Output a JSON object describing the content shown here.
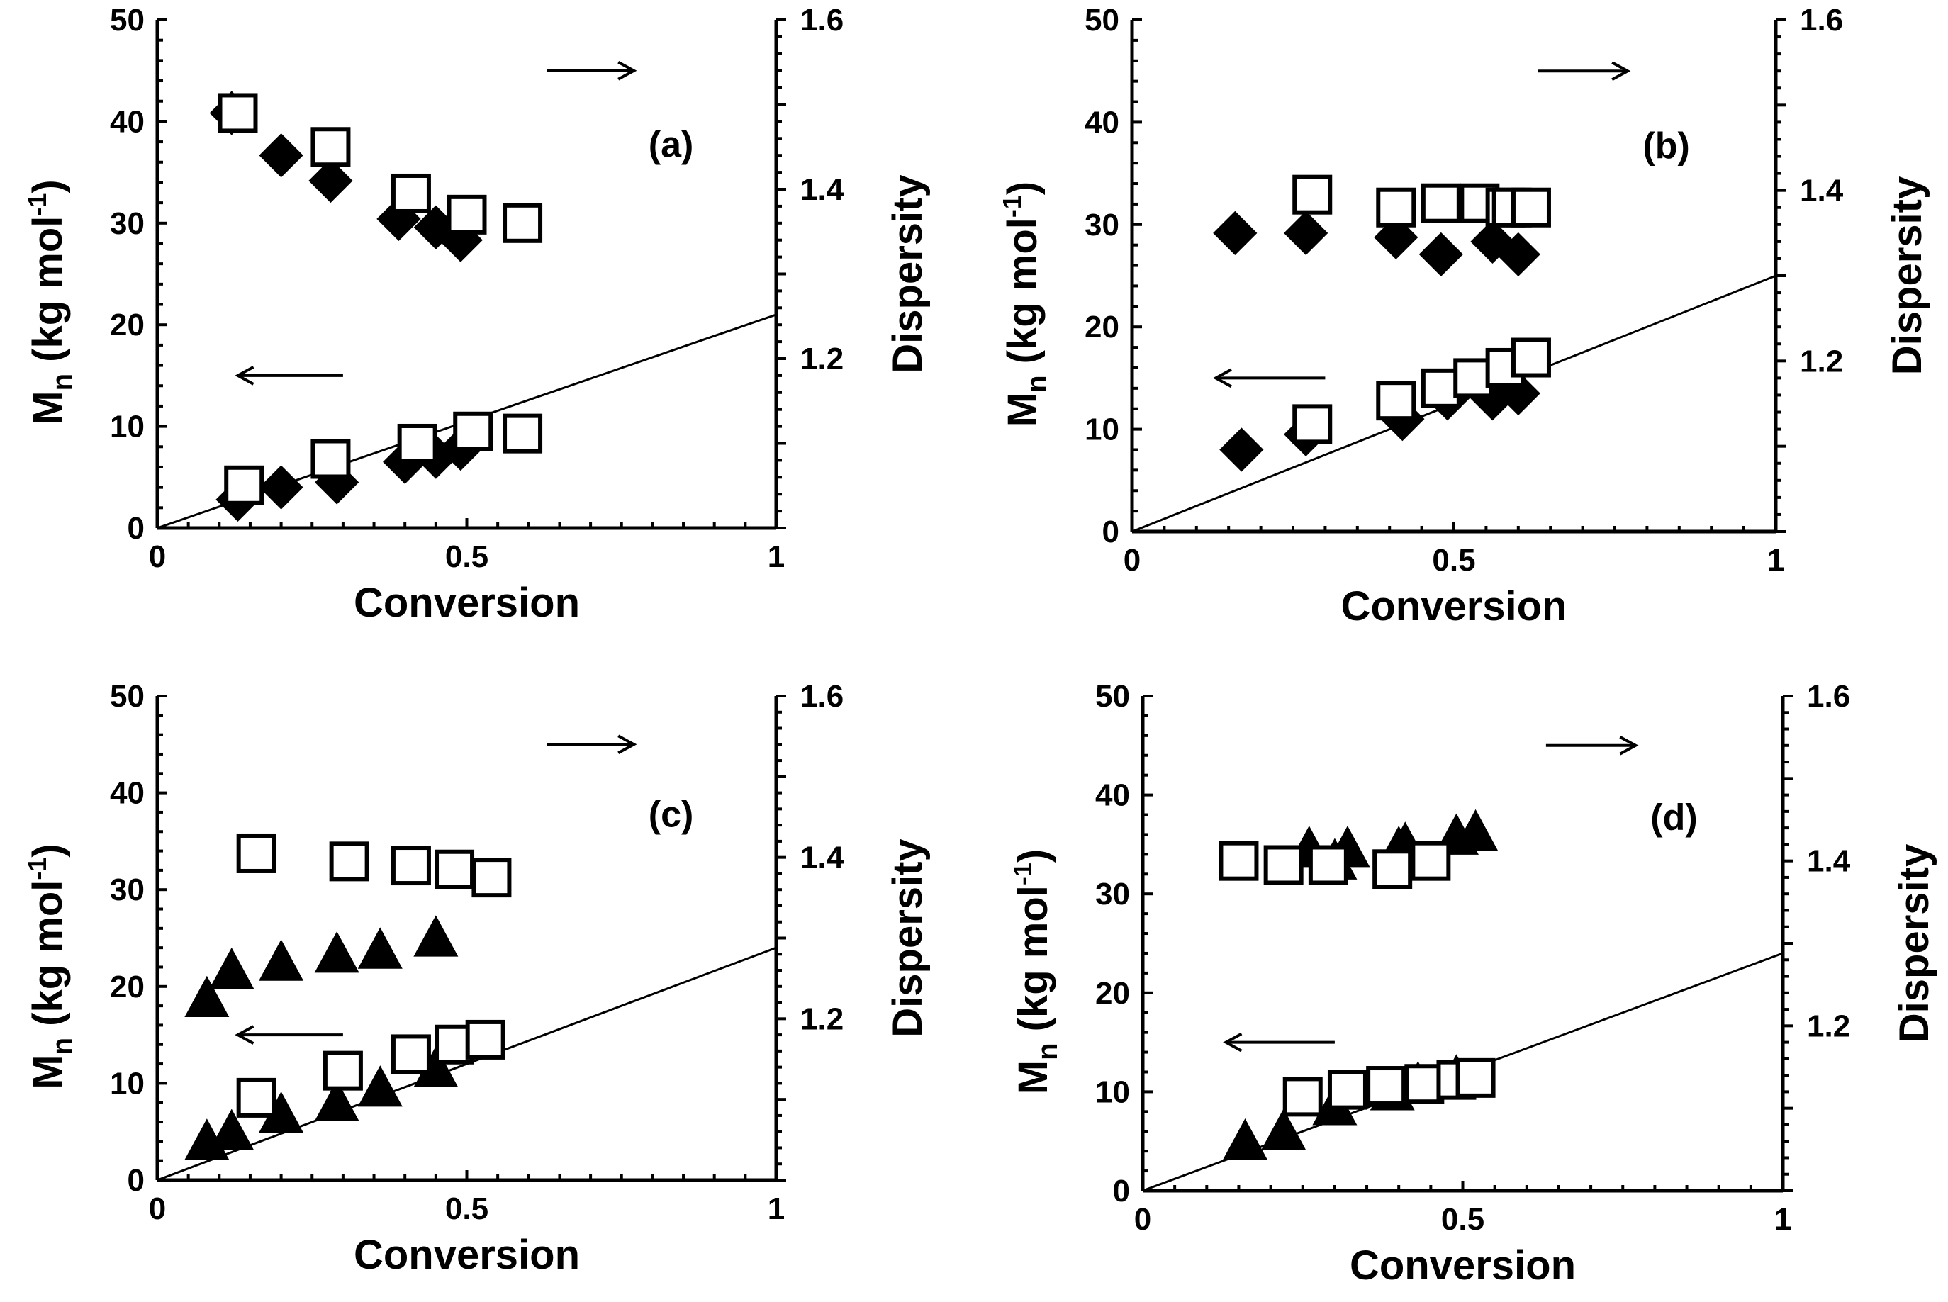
{
  "chart_data": [
    {
      "type": "scatter",
      "panel_label": "(a)",
      "xlabel": "Conversion",
      "ylabel_main": "M",
      "ylabel_sub": "n",
      "ylabel_rest": " (kg mol",
      "ylabel_sup": "-1",
      "ylabel_close": ")",
      "y2label": "Dispersity",
      "xlim": [
        0,
        1
      ],
      "ylim": [
        0,
        50
      ],
      "y2lim": [
        1.0,
        1.6
      ],
      "xticks": [
        "0",
        "0.5",
        "1"
      ],
      "yticks": [
        "0",
        "10",
        "20",
        "30",
        "40",
        "50"
      ],
      "y2ticks": [
        "1.2",
        "1.4",
        "1.6"
      ],
      "theory_line": {
        "x": [
          0,
          1
        ],
        "y": [
          0,
          21
        ]
      },
      "mn_arrow": "left",
      "disp_arrow": "right",
      "series": [
        {
          "name": "Mn filled",
          "marker": "diamond",
          "filled": true,
          "axis": "left",
          "x": [
            0.13,
            0.2,
            0.29,
            0.4,
            0.45,
            0.49
          ],
          "y": [
            2.8,
            4.0,
            4.5,
            6.5,
            7.0,
            7.8
          ]
        },
        {
          "name": "Mn open",
          "marker": "square",
          "filled": false,
          "axis": "left",
          "x": [
            0.14,
            0.28,
            0.42,
            0.51,
            0.59
          ],
          "y": [
            4.2,
            6.8,
            8.3,
            9.5,
            9.3
          ]
        },
        {
          "name": "Dispersity filled",
          "marker": "diamond",
          "filled": true,
          "axis": "right",
          "x": [
            0.12,
            0.2,
            0.28,
            0.39,
            0.45,
            0.49
          ],
          "y": [
            1.49,
            1.44,
            1.41,
            1.365,
            1.355,
            1.34
          ]
        },
        {
          "name": "Dispersity open",
          "marker": "square",
          "filled": false,
          "axis": "right",
          "x": [
            0.13,
            0.28,
            0.41,
            0.5,
            0.59
          ],
          "y": [
            1.49,
            1.45,
            1.395,
            1.37,
            1.36
          ]
        }
      ]
    },
    {
      "type": "scatter",
      "panel_label": "(b)",
      "xlabel": "Conversion",
      "ylabel_main": "M",
      "ylabel_sub": "n",
      "ylabel_rest": " (kg mol",
      "ylabel_sup": "-1",
      "ylabel_close": ")",
      "y2label": "Dispersity",
      "xlim": [
        0,
        1
      ],
      "ylim": [
        0,
        50
      ],
      "y2lim": [
        1.0,
        1.6
      ],
      "xticks": [
        "0",
        "0.5",
        "1"
      ],
      "yticks": [
        "0",
        "10",
        "20",
        "30",
        "40",
        "50"
      ],
      "y2ticks": [
        "1.2",
        "1.4",
        "1.6"
      ],
      "theory_line": {
        "x": [
          0,
          1
        ],
        "y": [
          0,
          25
        ]
      },
      "mn_arrow": "left",
      "disp_arrow": "right",
      "series": [
        {
          "name": "Mn filled",
          "marker": "diamond",
          "filled": true,
          "axis": "left",
          "x": [
            0.17,
            0.27,
            0.42,
            0.49,
            0.56,
            0.6
          ],
          "y": [
            8.0,
            9.5,
            11.0,
            13.0,
            13.0,
            13.5
          ]
        },
        {
          "name": "Mn open",
          "marker": "square",
          "filled": false,
          "axis": "left",
          "x": [
            0.28,
            0.41,
            0.48,
            0.53,
            0.58,
            0.62
          ],
          "y": [
            10.5,
            12.8,
            14.0,
            15.0,
            16.0,
            17.0
          ]
        },
        {
          "name": "Dispersity filled",
          "marker": "diamond",
          "filled": true,
          "axis": "right",
          "x": [
            0.16,
            0.27,
            0.41,
            0.48,
            0.56,
            0.6
          ],
          "y": [
            1.35,
            1.35,
            1.345,
            1.325,
            1.34,
            1.325
          ]
        },
        {
          "name": "Dispersity open",
          "marker": "square",
          "filled": false,
          "axis": "right",
          "x": [
            0.28,
            0.41,
            0.48,
            0.54,
            0.58,
            0.59,
            0.62
          ],
          "y": [
            1.395,
            1.38,
            1.385,
            1.385,
            1.38,
            1.38,
            1.38
          ]
        }
      ]
    },
    {
      "type": "scatter",
      "panel_label": "(c)",
      "xlabel": "Conversion",
      "ylabel_main": "M",
      "ylabel_sub": "n",
      "ylabel_rest": " (kg mol",
      "ylabel_sup": "-1",
      "ylabel_close": ")",
      "y2label": "Dispersity",
      "xlim": [
        0,
        1
      ],
      "ylim": [
        0,
        50
      ],
      "y2lim": [
        1.0,
        1.6
      ],
      "xticks": [
        "0",
        "0.5",
        "1"
      ],
      "yticks": [
        "0",
        "10",
        "20",
        "30",
        "40",
        "50"
      ],
      "y2ticks": [
        "1.2",
        "1.4",
        "1.6"
      ],
      "theory_line": {
        "x": [
          0,
          1
        ],
        "y": [
          0,
          24
        ]
      },
      "mn_arrow": "left",
      "disp_arrow": "right",
      "series": [
        {
          "name": "Mn filled",
          "marker": "triangle",
          "filled": true,
          "axis": "left",
          "x": [
            0.08,
            0.12,
            0.2,
            0.29,
            0.36,
            0.45
          ],
          "y": [
            4.0,
            5.0,
            6.8,
            8.0,
            9.5,
            11.5
          ]
        },
        {
          "name": "Mn open",
          "marker": "square",
          "filled": false,
          "axis": "left",
          "x": [
            0.16,
            0.3,
            0.41,
            0.48,
            0.53
          ],
          "y": [
            8.5,
            11.3,
            13.0,
            14.0,
            14.5
          ]
        },
        {
          "name": "Dispersity filled",
          "marker": "triangle",
          "filled": true,
          "axis": "right",
          "x": [
            0.08,
            0.12,
            0.2,
            0.29,
            0.36,
            0.45
          ],
          "y": [
            1.225,
            1.26,
            1.27,
            1.28,
            1.285,
            1.3
          ]
        },
        {
          "name": "Dispersity open",
          "marker": "square",
          "filled": false,
          "axis": "right",
          "x": [
            0.16,
            0.31,
            0.41,
            0.48,
            0.54
          ],
          "y": [
            1.405,
            1.395,
            1.39,
            1.385,
            1.375
          ]
        }
      ]
    },
    {
      "type": "scatter",
      "panel_label": "(d)",
      "xlabel": "Conversion",
      "ylabel_main": "M",
      "ylabel_sub": "n",
      "ylabel_rest": " (kg mol",
      "ylabel_sup": "-1",
      "ylabel_close": ")",
      "y2label": "Dispersity",
      "xlim": [
        0,
        1
      ],
      "ylim": [
        0,
        50
      ],
      "y2lim": [
        1.0,
        1.6
      ],
      "xticks": [
        "0",
        "0.5",
        "1"
      ],
      "yticks": [
        "0",
        "10",
        "20",
        "30",
        "40",
        "50"
      ],
      "y2ticks": [
        "1.2",
        "1.4",
        "1.6"
      ],
      "theory_line": {
        "x": [
          0,
          1
        ],
        "y": [
          0,
          24
        ]
      },
      "mn_arrow": "left",
      "disp_arrow": "right",
      "series": [
        {
          "name": "Mn filled",
          "marker": "triangle",
          "filled": true,
          "axis": "left",
          "x": [
            0.16,
            0.22,
            0.3,
            0.39,
            0.43,
            0.49
          ],
          "y": [
            5.0,
            6.0,
            8.5,
            10.0,
            10.8,
            11.5
          ]
        },
        {
          "name": "Mn open",
          "marker": "square",
          "filled": false,
          "axis": "left",
          "x": [
            0.25,
            0.32,
            0.38,
            0.44,
            0.49,
            0.52
          ],
          "y": [
            9.5,
            10.2,
            10.6,
            10.8,
            11.2,
            11.4
          ]
        },
        {
          "name": "Dispersity filled",
          "marker": "triangle",
          "filled": true,
          "axis": "right",
          "x": [
            0.26,
            0.3,
            0.32,
            0.4,
            0.41,
            0.49,
            0.52
          ],
          "y": [
            1.415,
            1.4,
            1.415,
            1.415,
            1.42,
            1.43,
            1.435
          ]
        },
        {
          "name": "Dispersity open",
          "marker": "square",
          "filled": false,
          "axis": "right",
          "x": [
            0.15,
            0.22,
            0.29,
            0.39,
            0.45
          ],
          "y": [
            1.4,
            1.395,
            1.395,
            1.39,
            1.4
          ]
        }
      ]
    }
  ]
}
